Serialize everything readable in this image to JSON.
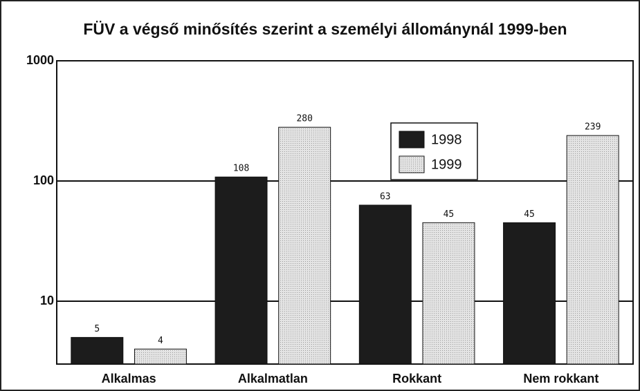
{
  "chart_data": {
    "type": "bar",
    "title": "FÜV a végső minősítés szerint a személyi állománynál 1999-ben",
    "categories": [
      "Alkalmas",
      "Alkalmatlan",
      "Rokkant",
      "Nem rokkant"
    ],
    "series": [
      {
        "name": "1998",
        "color": "#1c1c1c",
        "values": [
          5,
          108,
          63,
          45
        ]
      },
      {
        "name": "1999",
        "color": "#d6d6d6",
        "values": [
          4,
          280,
          45,
          239
        ]
      }
    ],
    "log_scale": true,
    "ylim": [
      3,
      1000
    ],
    "yticks": [
      10,
      100,
      1000
    ],
    "grid": true,
    "legend": "top"
  }
}
